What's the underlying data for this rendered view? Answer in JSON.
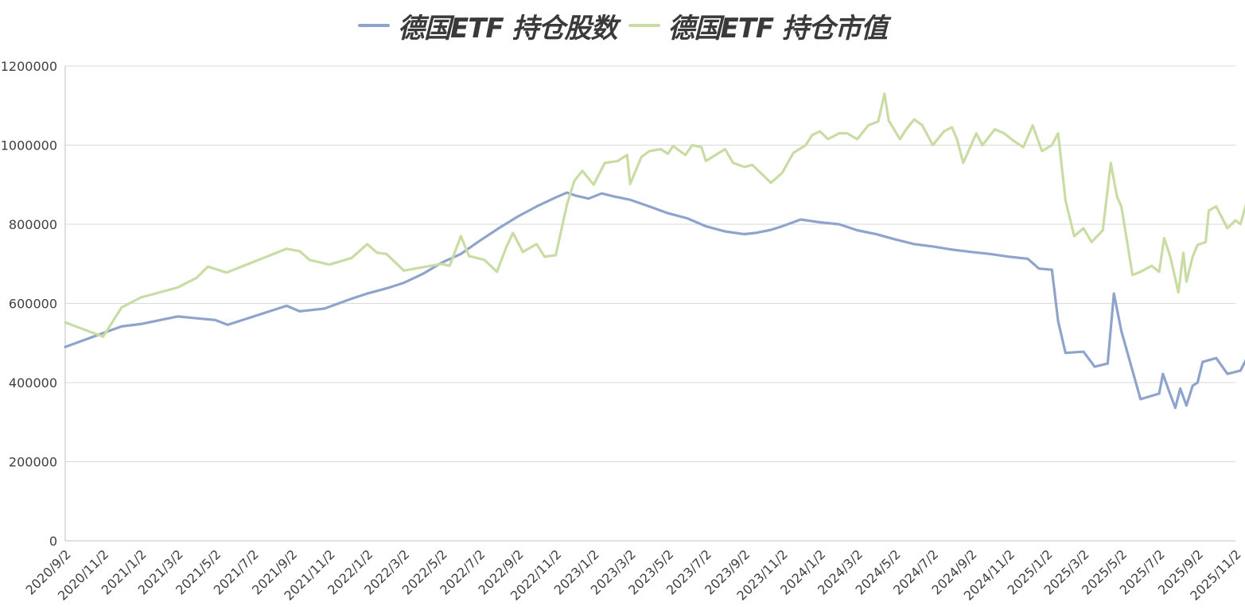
{
  "chart_data": {
    "type": "line",
    "title": "",
    "xlabel": "",
    "ylabel": "",
    "ylim": [
      0,
      1200000
    ],
    "y_ticks": [
      0,
      200000,
      400000,
      600000,
      800000,
      1000000,
      1200000
    ],
    "x_tick_labels": [
      "2020/9/2",
      "2020/11/2",
      "2021/1/2",
      "2021/3/2",
      "2021/5/2",
      "2021/7/2",
      "2021/9/2",
      "2021/11/2",
      "2022/1/2",
      "2022/3/2",
      "2022/5/2",
      "2022/7/2",
      "2022/9/2",
      "2022/11/2",
      "2023/1/2",
      "2023/3/2",
      "2023/5/2",
      "2023/7/2",
      "2023/9/2",
      "2023/11/2",
      "2024/1/2",
      "2024/3/2",
      "2024/5/2",
      "2024/7/2",
      "2024/9/2",
      "2024/11/2",
      "2025/1/2",
      "2025/3/2",
      "2025/5/2",
      "2025/7/2",
      "2025/9/2",
      "2025/11/2"
    ],
    "legend_position": "top-center",
    "grid": "horizontal",
    "series": [
      {
        "name": "德国ETF 持仓股数",
        "color": "#8ea4cc",
        "points": [
          [
            "2020/9/2",
            490000
          ],
          [
            "2020/11/2",
            525000
          ],
          [
            "2020/12/2",
            542000
          ],
          [
            "2021/1/2",
            548000
          ],
          [
            "2021/3/2",
            567000
          ],
          [
            "2021/5/2",
            558000
          ],
          [
            "2021/5/22",
            546000
          ],
          [
            "2021/8/25",
            594000
          ],
          [
            "2021/9/15",
            580000
          ],
          [
            "2021/10/25",
            587000
          ],
          [
            "2021/12/8",
            612000
          ],
          [
            "2022/1/2",
            625000
          ],
          [
            "2022/2/2",
            638000
          ],
          [
            "2022/3/2",
            652000
          ],
          [
            "2022/4/2",
            675000
          ],
          [
            "2022/5/2",
            703000
          ],
          [
            "2022/6/2",
            725000
          ],
          [
            "2022/7/2",
            758000
          ],
          [
            "2022/8/2",
            790000
          ],
          [
            "2022/9/2",
            820000
          ],
          [
            "2022/10/2",
            845000
          ],
          [
            "2022/11/2",
            868000
          ],
          [
            "2022/11/20",
            880000
          ],
          [
            "2022/12/5",
            872000
          ],
          [
            "2022/12/25",
            865000
          ],
          [
            "2023/1/15",
            878000
          ],
          [
            "2023/2/5",
            870000
          ],
          [
            "2023/3/2",
            862000
          ],
          [
            "2023/4/2",
            845000
          ],
          [
            "2023/5/2",
            828000
          ],
          [
            "2023/6/2",
            815000
          ],
          [
            "2023/7/2",
            795000
          ],
          [
            "2023/8/2",
            782000
          ],
          [
            "2023/9/2",
            775000
          ],
          [
            "2023/9/20",
            778000
          ],
          [
            "2023/10/15",
            786000
          ],
          [
            "2023/11/2",
            795000
          ],
          [
            "2023/12/2",
            812000
          ],
          [
            "2024/1/2",
            805000
          ],
          [
            "2024/2/2",
            800000
          ],
          [
            "2024/3/2",
            785000
          ],
          [
            "2024/4/2",
            775000
          ],
          [
            "2024/5/2",
            762000
          ],
          [
            "2024/6/2",
            750000
          ],
          [
            "2024/7/2",
            744000
          ],
          [
            "2024/8/2",
            736000
          ],
          [
            "2024/9/2",
            730000
          ],
          [
            "2024/10/2",
            725000
          ],
          [
            "2024/11/2",
            718000
          ],
          [
            "2024/12/2",
            713000
          ],
          [
            "2024/12/20",
            688000
          ],
          [
            "2025/1/10",
            685000
          ],
          [
            "2025/1/20",
            555000
          ],
          [
            "2025/2/1",
            475000
          ],
          [
            "2025/3/2",
            478000
          ],
          [
            "2025/3/20",
            440000
          ],
          [
            "2025/4/10",
            448000
          ],
          [
            "2025/4/20",
            625000
          ],
          [
            "2025/5/2",
            530000
          ],
          [
            "2025/6/2",
            358000
          ],
          [
            "2025/7/2",
            372000
          ],
          [
            "2025/7/8",
            422000
          ],
          [
            "2025/7/18",
            378000
          ],
          [
            "2025/7/28",
            336000
          ],
          [
            "2025/8/5",
            385000
          ],
          [
            "2025/8/15",
            342000
          ],
          [
            "2025/8/25",
            392000
          ],
          [
            "2025/9/2",
            400000
          ],
          [
            "2025/9/10",
            452000
          ],
          [
            "2025/10/2",
            462000
          ],
          [
            "2025/10/20",
            422000
          ],
          [
            "2025/11/10",
            430000
          ],
          [
            "2025/11/20",
            460000
          ]
        ]
      },
      {
        "name": "德国ETF 持仓市值",
        "color": "#c9dca4",
        "points": [
          [
            "2020/9/2",
            552000
          ],
          [
            "2020/11/2",
            516000
          ],
          [
            "2020/12/2",
            590000
          ],
          [
            "2021/1/2",
            615000
          ],
          [
            "2021/3/2",
            640000
          ],
          [
            "2021/4/2",
            665000
          ],
          [
            "2021/4/20",
            693000
          ],
          [
            "2021/5/20",
            678000
          ],
          [
            "2021/8/25",
            738000
          ],
          [
            "2021/9/15",
            732000
          ],
          [
            "2021/10/1",
            710000
          ],
          [
            "2021/11/2",
            698000
          ],
          [
            "2021/12/8",
            715000
          ],
          [
            "2022/1/2",
            750000
          ],
          [
            "2022/1/18",
            728000
          ],
          [
            "2022/2/2",
            725000
          ],
          [
            "2022/3/2",
            683000
          ],
          [
            "2022/5/2",
            700000
          ],
          [
            "2022/5/15",
            695000
          ],
          [
            "2022/6/2",
            770000
          ],
          [
            "2022/6/15",
            720000
          ],
          [
            "2022/7/10",
            710000
          ],
          [
            "2022/7/30",
            680000
          ],
          [
            "2022/8/15",
            745000
          ],
          [
            "2022/8/25",
            778000
          ],
          [
            "2022/9/10",
            730000
          ],
          [
            "2022/10/2",
            750000
          ],
          [
            "2022/10/15",
            718000
          ],
          [
            "2022/11/2",
            722000
          ],
          [
            "2022/11/20",
            850000
          ],
          [
            "2022/12/2",
            910000
          ],
          [
            "2022/12/15",
            935000
          ],
          [
            "2023/1/2",
            900000
          ],
          [
            "2023/1/20",
            955000
          ],
          [
            "2023/2/10",
            960000
          ],
          [
            "2023/2/25",
            975000
          ],
          [
            "2023/3/2",
            902000
          ],
          [
            "2023/3/20",
            970000
          ],
          [
            "2023/4/2",
            985000
          ],
          [
            "2023/4/20",
            990000
          ],
          [
            "2023/5/2",
            978000
          ],
          [
            "2023/5/10",
            998000
          ],
          [
            "2023/5/30",
            975000
          ],
          [
            "2023/6/10",
            1000000
          ],
          [
            "2023/6/25",
            995000
          ],
          [
            "2023/7/2",
            960000
          ],
          [
            "2023/8/2",
            990000
          ],
          [
            "2023/8/15",
            955000
          ],
          [
            "2023/9/2",
            945000
          ],
          [
            "2023/9/15",
            950000
          ],
          [
            "2023/10/15",
            905000
          ],
          [
            "2023/11/2",
            930000
          ],
          [
            "2023/11/20",
            980000
          ],
          [
            "2023/12/10",
            1000000
          ],
          [
            "2023/12/20",
            1025000
          ],
          [
            "2024/1/2",
            1035000
          ],
          [
            "2024/1/15",
            1015000
          ],
          [
            "2024/2/2",
            1030000
          ],
          [
            "2024/2/15",
            1030000
          ],
          [
            "2024/3/2",
            1015000
          ],
          [
            "2024/3/20",
            1050000
          ],
          [
            "2024/4/5",
            1060000
          ],
          [
            "2024/4/15",
            1130000
          ],
          [
            "2024/4/22",
            1062000
          ],
          [
            "2024/5/10",
            1015000
          ],
          [
            "2024/5/20",
            1040000
          ],
          [
            "2024/6/2",
            1065000
          ],
          [
            "2024/6/15",
            1050000
          ],
          [
            "2024/7/2",
            1000000
          ],
          [
            "2024/7/20",
            1035000
          ],
          [
            "2024/8/2",
            1045000
          ],
          [
            "2024/8/10",
            1015000
          ],
          [
            "2024/8/20",
            955000
          ],
          [
            "2024/9/10",
            1030000
          ],
          [
            "2024/9/20",
            1000000
          ],
          [
            "2024/10/10",
            1040000
          ],
          [
            "2024/10/25",
            1030000
          ],
          [
            "2024/11/10",
            1010000
          ],
          [
            "2024/11/25",
            995000
          ],
          [
            "2024/12/10",
            1050000
          ],
          [
            "2024/12/25",
            985000
          ],
          [
            "2025/1/10",
            1000000
          ],
          [
            "2025/1/20",
            1030000
          ],
          [
            "2025/2/1",
            860000
          ],
          [
            "2025/2/15",
            770000
          ],
          [
            "2025/3/2",
            790000
          ],
          [
            "2025/3/15",
            755000
          ],
          [
            "2025/4/2",
            785000
          ],
          [
            "2025/4/15",
            955000
          ],
          [
            "2025/4/25",
            870000
          ],
          [
            "2025/5/2",
            845000
          ],
          [
            "2025/5/20",
            672000
          ],
          [
            "2025/6/2",
            680000
          ],
          [
            "2025/6/20",
            695000
          ],
          [
            "2025/7/2",
            680000
          ],
          [
            "2025/7/10",
            765000
          ],
          [
            "2025/7/20",
            718000
          ],
          [
            "2025/8/2",
            628000
          ],
          [
            "2025/8/10",
            728000
          ],
          [
            "2025/8/15",
            655000
          ],
          [
            "2025/8/25",
            718000
          ],
          [
            "2025/9/2",
            748000
          ],
          [
            "2025/9/15",
            755000
          ],
          [
            "2025/9/20",
            835000
          ],
          [
            "2025/10/2",
            845000
          ],
          [
            "2025/10/20",
            790000
          ],
          [
            "2025/11/2",
            810000
          ],
          [
            "2025/11/10",
            800000
          ],
          [
            "2025/11/20",
            855000
          ]
        ]
      }
    ]
  }
}
